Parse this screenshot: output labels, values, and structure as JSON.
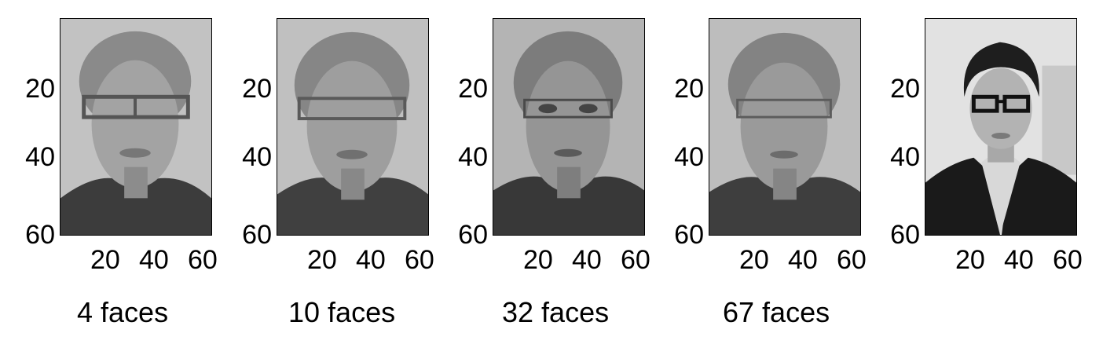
{
  "panels": [
    {
      "caption": "4 faces",
      "image": "reconstructed face (4 faces)",
      "yticks": [
        "20",
        "40",
        "60"
      ],
      "xticks": [
        "20",
        "40",
        "60"
      ]
    },
    {
      "caption": "10 faces",
      "image": "reconstructed face (10 faces)",
      "yticks": [
        "20",
        "40",
        "60"
      ],
      "xticks": [
        "20",
        "40",
        "60"
      ]
    },
    {
      "caption": "32 faces",
      "image": "reconstructed face (32 faces)",
      "yticks": [
        "20",
        "40",
        "60"
      ],
      "xticks": [
        "20",
        "40",
        "60"
      ]
    },
    {
      "caption": "67 faces",
      "image": "reconstructed face (67 faces)",
      "yticks": [
        "20",
        "40",
        "60"
      ],
      "xticks": [
        "20",
        "40",
        "60"
      ]
    },
    {
      "caption": "",
      "image": "original face photo",
      "yticks": [
        "20",
        "40",
        "60"
      ],
      "xticks": [
        "20",
        "40",
        "60"
      ]
    }
  ]
}
